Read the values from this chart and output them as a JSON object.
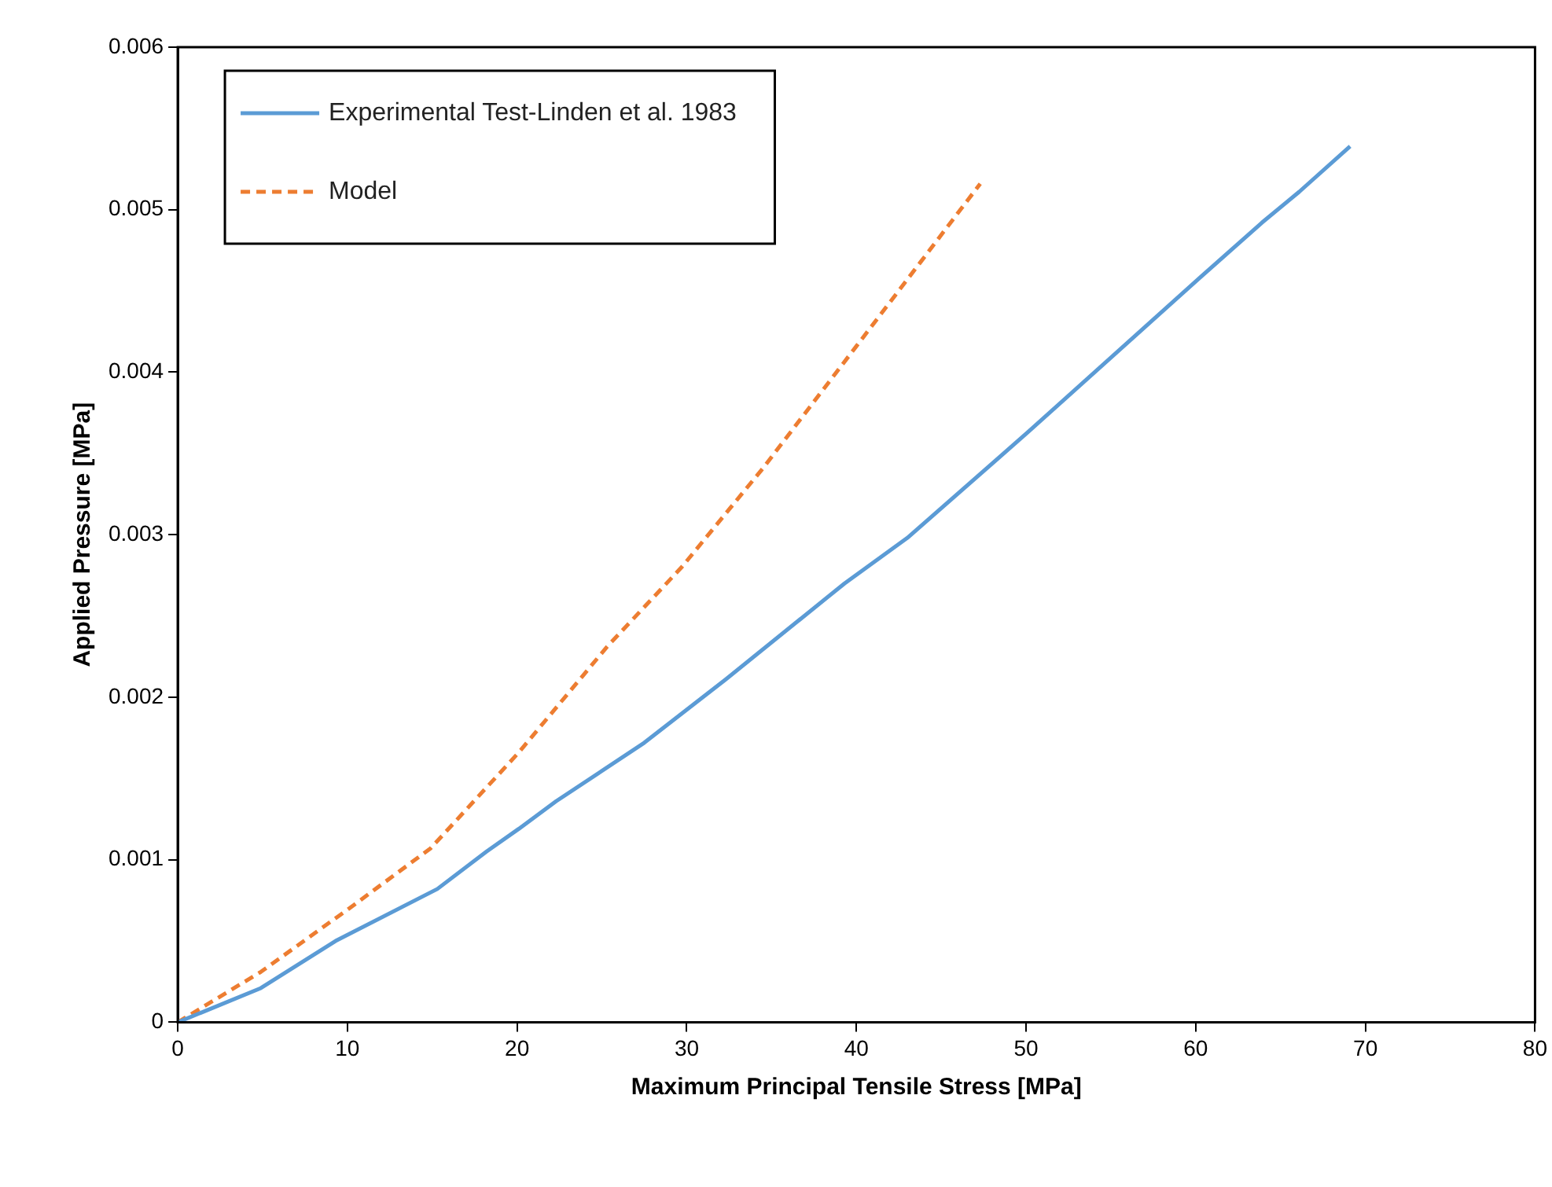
{
  "chart_data": {
    "type": "line",
    "xlabel": "Maximum Principal Tensile Stress [MPa]",
    "ylabel": "Applied Pressure [MPa]",
    "xlim": [
      0,
      80
    ],
    "xticks": [
      0,
      10,
      20,
      30,
      40,
      50,
      60,
      70,
      80
    ],
    "ylim": [
      0,
      0.006
    ],
    "yticks": [
      0,
      0.001,
      0.002,
      0.003,
      0.004,
      0.005,
      0.006
    ],
    "grid": false,
    "legend": "top left",
    "marker": "none",
    "series": [
      {
        "name": "Experimental Test-Linden et al. 1983",
        "color": "#5b9bd5",
        "line_style": "solid",
        "x": [
          0,
          4.9,
          9.3,
          15.3,
          18.2,
          20.1,
          22.3,
          27.5,
          32.3,
          39.3,
          43.0,
          50.1,
          59.8,
          63.9,
          66.1,
          69.1
        ],
        "values": [
          0,
          0.00021,
          0.0005,
          0.00082,
          0.00105,
          0.00119,
          0.00136,
          0.00172,
          0.00211,
          0.0027,
          0.00298,
          0.00363,
          0.00454,
          0.00492,
          0.00511,
          0.00539
        ]
      },
      {
        "name": "Model",
        "color": "#ed7d31",
        "line_style": "dashed",
        "x": [
          0,
          4.9,
          10.1,
          14.9,
          20.1,
          25.3,
          29.7,
          34.5,
          40.0,
          43.8,
          47.3
        ],
        "values": [
          0,
          0.00031,
          0.0007,
          0.00107,
          0.00166,
          0.00231,
          0.0028,
          0.00341,
          0.00416,
          0.00468,
          0.00516
        ]
      }
    ]
  }
}
